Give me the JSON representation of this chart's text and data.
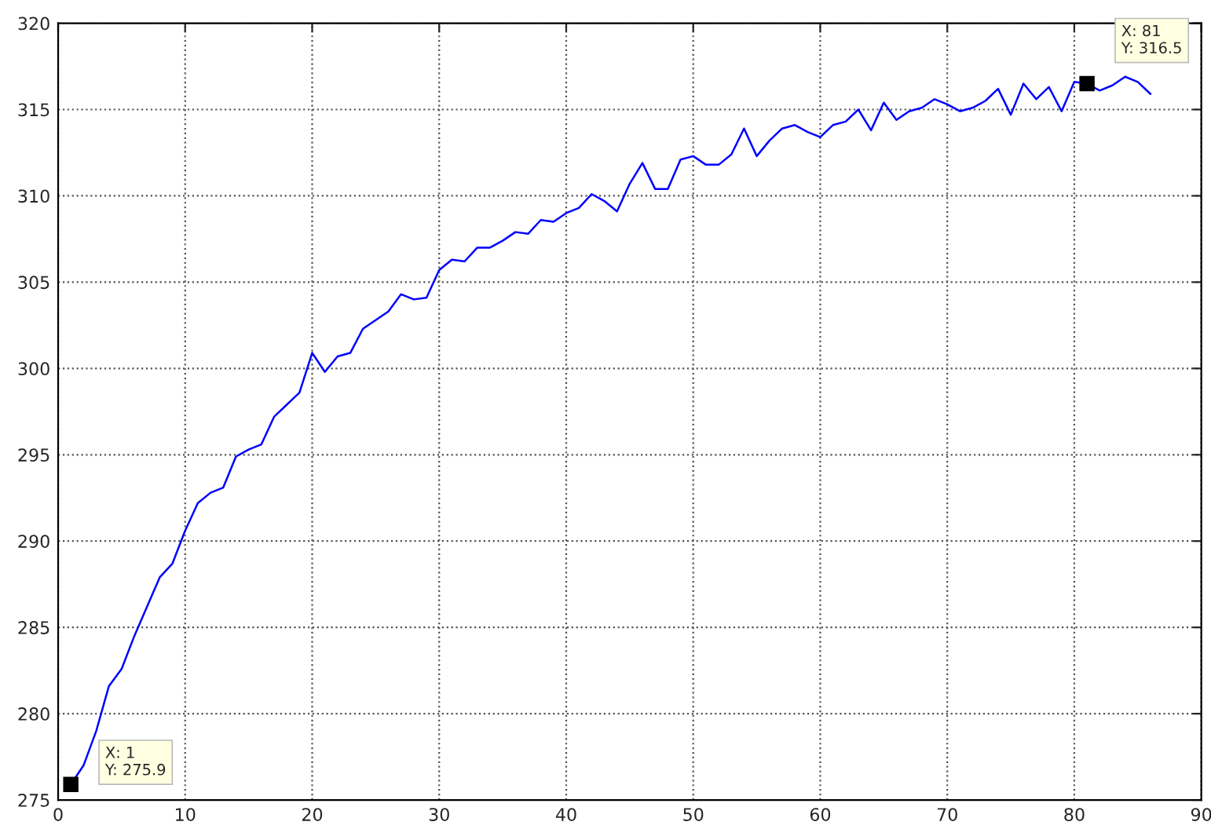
{
  "chart_data": {
    "type": "line",
    "x": [
      1,
      2,
      3,
      4,
      5,
      6,
      7,
      8,
      9,
      10,
      11,
      12,
      13,
      14,
      15,
      16,
      17,
      18,
      19,
      20,
      21,
      22,
      23,
      24,
      25,
      26,
      27,
      28,
      29,
      30,
      31,
      32,
      33,
      34,
      35,
      36,
      37,
      38,
      39,
      40,
      41,
      42,
      43,
      44,
      45,
      46,
      47,
      48,
      49,
      50,
      51,
      52,
      53,
      54,
      55,
      56,
      57,
      58,
      59,
      60,
      61,
      62,
      63,
      64,
      65,
      66,
      67,
      68,
      69,
      70,
      71,
      72,
      73,
      74,
      75,
      76,
      77,
      78,
      79,
      80,
      81,
      82,
      83,
      84,
      85,
      86
    ],
    "series": [
      {
        "color": "#0000ff",
        "values": [
          275.9,
          277.0,
          279.0,
          281.6,
          282.6,
          284.5,
          286.2,
          287.9,
          288.7,
          290.6,
          292.2,
          292.8,
          293.1,
          294.9,
          295.3,
          295.6,
          297.2,
          297.9,
          298.6,
          300.9,
          299.8,
          300.7,
          300.9,
          302.3,
          302.8,
          303.3,
          304.3,
          304.0,
          304.1,
          305.7,
          306.3,
          306.2,
          307.0,
          307.0,
          307.4,
          307.9,
          307.8,
          308.6,
          308.5,
          309.0,
          309.3,
          310.1,
          309.7,
          309.1,
          310.7,
          311.9,
          310.4,
          310.4,
          312.1,
          312.3,
          311.8,
          311.8,
          312.4,
          313.9,
          312.3,
          313.2,
          313.9,
          314.1,
          313.7,
          313.4,
          314.1,
          314.3,
          315.0,
          313.8,
          315.4,
          314.4,
          314.9,
          315.1,
          315.6,
          315.3,
          314.9,
          315.1,
          315.5,
          316.2,
          314.7,
          316.5,
          315.6,
          316.3,
          314.9,
          316.6,
          316.5,
          316.1,
          316.4,
          316.9,
          316.6,
          315.9
        ]
      }
    ],
    "annotations": [
      {
        "text": "X: 1\nY: 275.9",
        "x": 1,
        "y": 275.9
      },
      {
        "text": "X: 81\nY: 316.5",
        "x": 81,
        "y": 316.5
      }
    ],
    "xlim": [
      0,
      90
    ],
    "xticks": [
      0,
      10,
      20,
      30,
      40,
      50,
      60,
      70,
      80,
      90
    ],
    "ylim": [
      275,
      320
    ],
    "yticks": [
      275,
      280,
      285,
      290,
      295,
      300,
      305,
      310,
      315,
      320
    ],
    "grid": true,
    "marker": "none",
    "line_style": "solid"
  }
}
